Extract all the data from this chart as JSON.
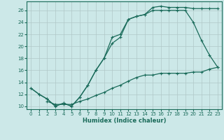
{
  "xlabel": "Humidex (Indice chaleur)",
  "bg_color": "#cce8e8",
  "line_color": "#1a6b5a",
  "xlim": [
    -0.5,
    23.5
  ],
  "ylim": [
    9.5,
    27.5
  ],
  "yticks": [
    10,
    12,
    14,
    16,
    18,
    20,
    22,
    24,
    26
  ],
  "xticks": [
    0,
    1,
    2,
    3,
    4,
    5,
    6,
    7,
    8,
    9,
    10,
    11,
    12,
    13,
    14,
    15,
    16,
    17,
    18,
    19,
    20,
    21,
    22,
    23
  ],
  "curve1_x": [
    0,
    1,
    2,
    3,
    4,
    5,
    6,
    7,
    8,
    9,
    10,
    11,
    12,
    13,
    14,
    15,
    16,
    17,
    18,
    19,
    20,
    21,
    22,
    23
  ],
  "curve1_y": [
    13,
    12,
    11.2,
    10,
    10.5,
    10,
    11.5,
    13.5,
    16,
    18,
    21.5,
    22,
    24.5,
    25,
    25.3,
    26.5,
    26.7,
    26.5,
    26.5,
    26.5,
    26.3,
    26.3,
    26.3,
    26.3
  ],
  "curve2_x": [
    0,
    1,
    2,
    3,
    4,
    5,
    6,
    7,
    8,
    9,
    10,
    11,
    12,
    13,
    14,
    15,
    16,
    17,
    18,
    19,
    20,
    21,
    22,
    23
  ],
  "curve2_y": [
    13,
    12,
    11.2,
    10,
    10.5,
    10,
    11.5,
    13.5,
    16,
    18,
    20.5,
    21.5,
    24.5,
    25,
    25.3,
    26,
    26,
    26,
    26,
    26,
    24,
    21,
    18.5,
    16.5
  ],
  "curve3_x": [
    2,
    3,
    4,
    5,
    6,
    7,
    8,
    9,
    10,
    11,
    12,
    13,
    14,
    15,
    16,
    17,
    18,
    19,
    20,
    21,
    22,
    23
  ],
  "curve3_y": [
    10.8,
    10.3,
    10.3,
    10.3,
    10.8,
    11.2,
    11.8,
    12.3,
    13,
    13.5,
    14.2,
    14.8,
    15.2,
    15.2,
    15.5,
    15.5,
    15.5,
    15.5,
    15.7,
    15.7,
    16.2,
    16.5
  ]
}
